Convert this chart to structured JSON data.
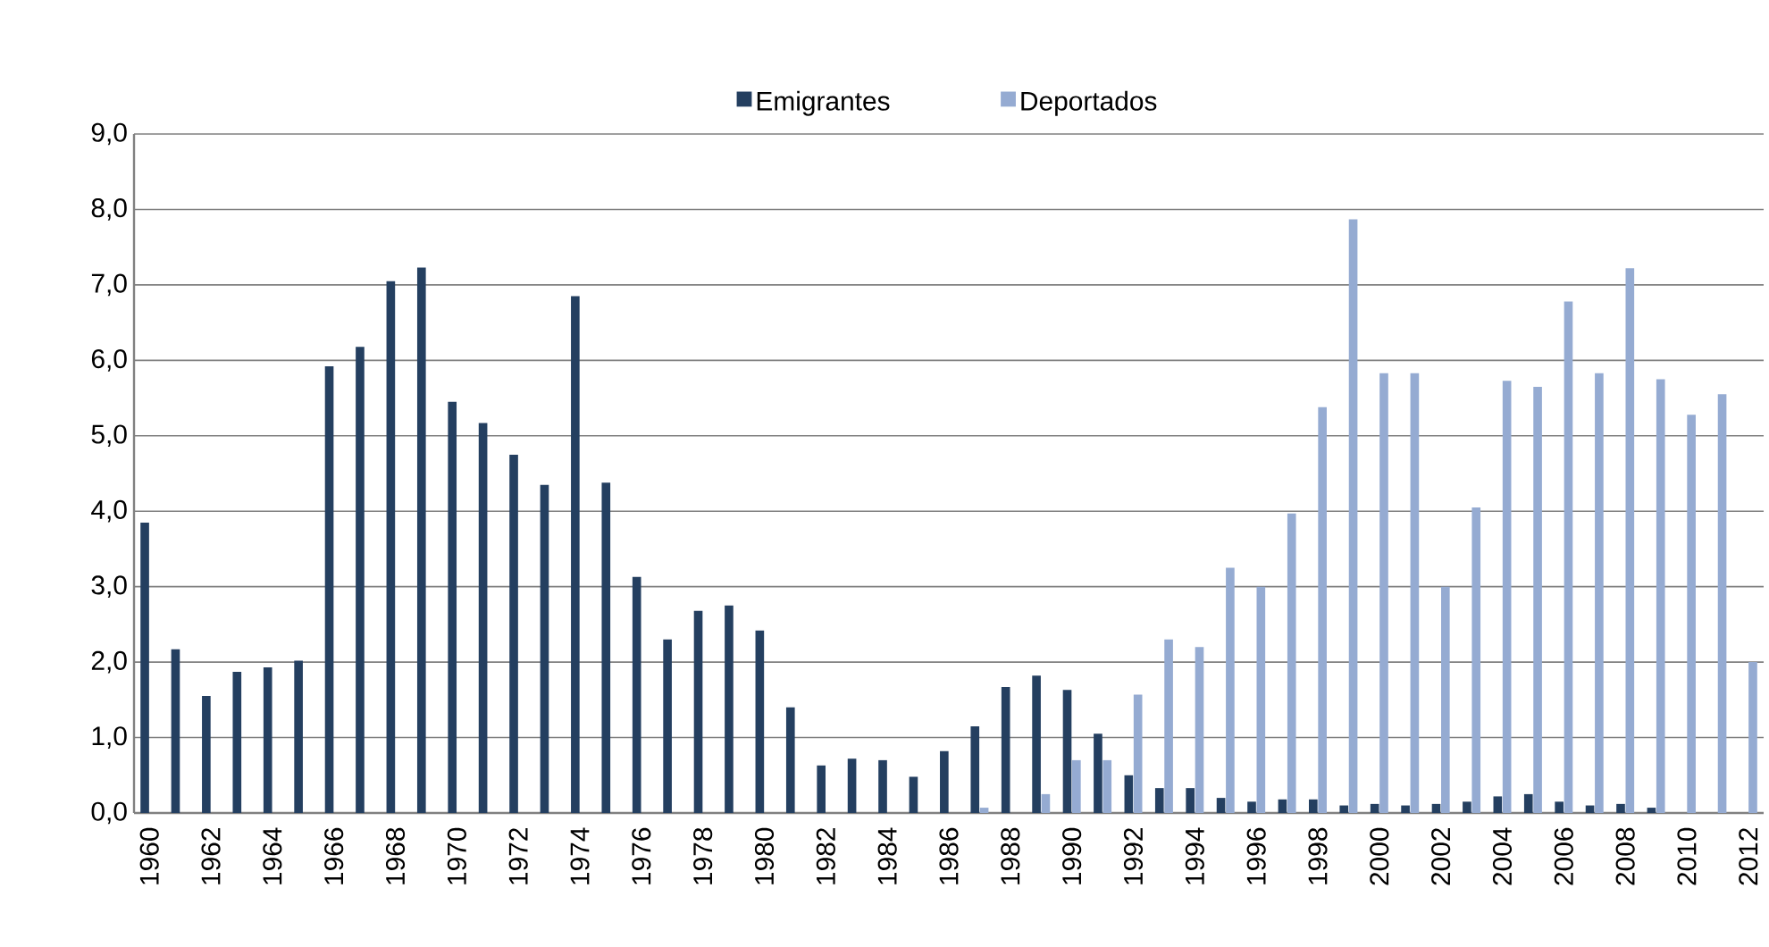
{
  "chart_data": {
    "type": "bar",
    "categories": [
      "1960",
      null,
      "1962",
      null,
      "1964",
      null,
      "1966",
      null,
      "1968",
      null,
      "1970",
      null,
      "1972",
      null,
      "1974",
      null,
      "1976",
      null,
      "1978",
      null,
      "1980",
      null,
      "1982",
      null,
      "1984",
      null,
      "1986",
      null,
      "1988",
      null,
      "1990",
      null,
      "1992",
      null,
      "1994",
      null,
      "1996",
      null,
      "1998",
      null,
      "2000",
      null,
      "2002",
      null,
      "2004",
      null,
      "2006",
      null,
      "2008",
      null,
      "2010",
      null,
      "2012"
    ],
    "series": [
      {
        "name": "Emigrantes",
        "color": "#243f60",
        "values": [
          3.85,
          2.17,
          1.55,
          1.87,
          1.93,
          2.02,
          5.92,
          6.18,
          7.05,
          7.23,
          5.45,
          5.17,
          4.75,
          4.35,
          6.85,
          4.38,
          3.13,
          2.3,
          2.68,
          2.75,
          2.42,
          1.4,
          0.63,
          0.72,
          0.7,
          0.48,
          0.82,
          1.15,
          1.67,
          1.82,
          1.63,
          1.05,
          0.5,
          0.33,
          0.33,
          0.2,
          0.15,
          0.18,
          0.18,
          0.1,
          0.12,
          0.1,
          0.12,
          0.15,
          0.22,
          0.25,
          0.15,
          0.1,
          0.12,
          0.07,
          null,
          null,
          null
        ]
      },
      {
        "name": "Deportados",
        "color": "#95abd2",
        "values": [
          null,
          null,
          null,
          null,
          null,
          null,
          null,
          null,
          null,
          null,
          null,
          null,
          null,
          null,
          null,
          null,
          null,
          null,
          null,
          null,
          null,
          null,
          null,
          null,
          null,
          null,
          null,
          0.07,
          null,
          0.25,
          0.7,
          0.7,
          1.57,
          2.3,
          2.2,
          3.25,
          3.0,
          3.97,
          5.38,
          7.87,
          5.83,
          5.83,
          3.0,
          4.05,
          5.73,
          5.65,
          6.78,
          5.83,
          7.22,
          5.75,
          5.28,
          5.55,
          2.0
        ]
      }
    ],
    "ylim": [
      0,
      9
    ],
    "yticks": [
      {
        "value": 0,
        "label": "0,0"
      },
      {
        "value": 1,
        "label": "1,0"
      },
      {
        "value": 2,
        "label": "2,0"
      },
      {
        "value": 3,
        "label": "3,0"
      },
      {
        "value": 4,
        "label": "4,0"
      },
      {
        "value": 5,
        "label": "5,0"
      },
      {
        "value": 6,
        "label": "6,0"
      },
      {
        "value": 7,
        "label": "7,0"
      },
      {
        "value": 8,
        "label": "8,0"
      },
      {
        "value": 9,
        "label": "9,0"
      }
    ],
    "grid": "y",
    "legend": "top"
  }
}
